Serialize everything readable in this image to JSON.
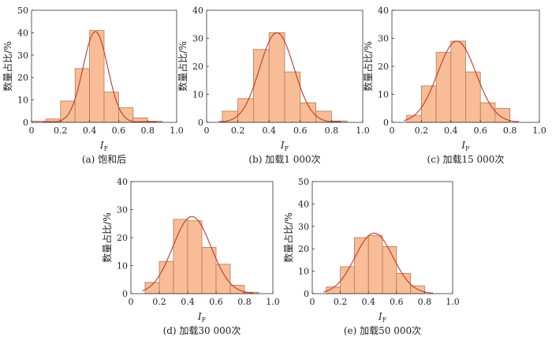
{
  "chart_data": [
    {
      "type": "bar",
      "caption": "(a) 饱和后",
      "xlabel": "I",
      "xlabel_sub": "F",
      "ylabel": "数量占比/%",
      "xlim": [
        0,
        1.0
      ],
      "ylim": [
        0,
        50
      ],
      "xticks": [
        "0",
        "0.2",
        "0.4",
        "0.6",
        "0.8",
        "1.0"
      ],
      "yticks": [
        "0",
        "10",
        "20",
        "30",
        "40",
        "50"
      ],
      "bin_width": 0.1,
      "x": [
        0.05,
        0.15,
        0.25,
        0.35,
        0.45,
        0.55,
        0.65,
        0.75,
        0.85
      ],
      "values": [
        0.5,
        1.5,
        9.5,
        24,
        41,
        13.5,
        6.5,
        2,
        0.5
      ],
      "fit": {
        "mean": 0.44,
        "sd": 0.085,
        "peak": 40.5
      }
    },
    {
      "type": "bar",
      "caption": "(b) 加载1 000次",
      "xlabel": "I",
      "xlabel_sub": "F",
      "ylabel": "数量占比/%",
      "xlim": [
        0,
        1.0
      ],
      "ylim": [
        0,
        40
      ],
      "xticks": [
        "0",
        "0.2",
        "0.4",
        "0.6",
        "0.8",
        "1.0"
      ],
      "yticks": [
        "0",
        "10",
        "20",
        "30",
        "40"
      ],
      "bin_width": 0.1,
      "x": [
        0.15,
        0.25,
        0.35,
        0.45,
        0.55,
        0.65,
        0.75,
        0.85
      ],
      "values": [
        4,
        8.5,
        26,
        32,
        18,
        7,
        4,
        0.5
      ],
      "fit": {
        "mean": 0.45,
        "sd": 0.11,
        "peak": 32
      }
    },
    {
      "type": "bar",
      "caption": "(c) 加载15 000次",
      "xlabel": "I",
      "xlabel_sub": "F",
      "ylabel": "数量占比/%",
      "xlim": [
        0,
        1.0
      ],
      "ylim": [
        0,
        40
      ],
      "xticks": [
        "0",
        "0.2",
        "0.4",
        "0.6",
        "0.8",
        "1.0"
      ],
      "yticks": [
        "0",
        "10",
        "20",
        "30",
        "40"
      ],
      "bin_width": 0.1,
      "x": [
        0.15,
        0.25,
        0.35,
        0.45,
        0.55,
        0.65,
        0.75
      ],
      "values": [
        2.5,
        13,
        25,
        29,
        18,
        7,
        5
      ],
      "fit": {
        "mean": 0.44,
        "sd": 0.13,
        "peak": 29
      }
    },
    {
      "type": "bar",
      "caption": "(d) 加载30 000次",
      "xlabel": "I",
      "xlabel_sub": "F",
      "ylabel": "数量占比/%",
      "xlim": [
        0,
        1.0
      ],
      "ylim": [
        0,
        40
      ],
      "xticks": [
        "0",
        "0.2",
        "0.4",
        "0.6",
        "0.8",
        "1.0"
      ],
      "yticks": [
        "0",
        "10",
        "20",
        "30",
        "40"
      ],
      "bin_width": 0.1,
      "x": [
        0.15,
        0.25,
        0.35,
        0.45,
        0.55,
        0.65,
        0.75,
        0.85
      ],
      "values": [
        4,
        11.5,
        26.5,
        26,
        16.5,
        10.5,
        3,
        0.5
      ],
      "fit": {
        "mean": 0.43,
        "sd": 0.135,
        "peak": 27.5
      }
    },
    {
      "type": "bar",
      "caption": "(e) 加载50 000次",
      "xlabel": "I",
      "xlabel_sub": "F",
      "ylabel": "数量占比/%",
      "xlim": [
        0,
        1.0
      ],
      "ylim": [
        0,
        50
      ],
      "xticks": [
        "0",
        "0.2",
        "0.4",
        "0.6",
        "0.8",
        "1.0"
      ],
      "yticks": [
        "0",
        "10",
        "20",
        "30",
        "40",
        "50"
      ],
      "bin_width": 0.1,
      "x": [
        0.15,
        0.25,
        0.35,
        0.45,
        0.55,
        0.65,
        0.75
      ],
      "values": [
        3,
        12,
        25,
        26,
        21,
        9,
        3.5
      ],
      "fit": {
        "mean": 0.44,
        "sd": 0.135,
        "peak": 27
      }
    }
  ]
}
